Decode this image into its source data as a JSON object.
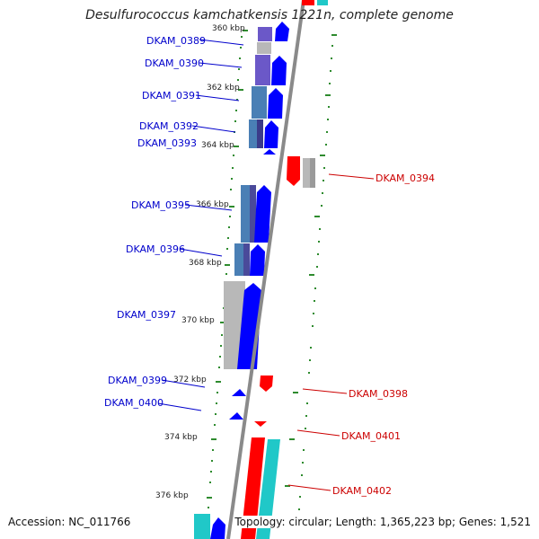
{
  "title": "Desulfurococcus kamchatkensis 1221n, complete genome",
  "accession_text": "Accession: NC_011766",
  "topology_text": "Topology: circular; Length: 1,365,223 bp; Genes: 1,521",
  "colors": {
    "forward_gene": "#0000ff",
    "reverse_gene": "#ff0000",
    "forward_label": "#0000cc",
    "reverse_label": "#cc0000",
    "backbone": "#8a8a8a",
    "tick": "#2e8b2e",
    "cog_steel": "#4a7fb5",
    "cog_purple": "#6b58c8",
    "cog_gray": "#b8b8b8",
    "cog_cyan": "#20c8c8"
  },
  "ticks": [
    {
      "label": "360 kbp"
    },
    {
      "label": "362 kbp"
    },
    {
      "label": "364 kbp"
    },
    {
      "label": "366 kbp"
    },
    {
      "label": "368 kbp"
    },
    {
      "label": "370 kbp"
    },
    {
      "label": "372 kbp"
    },
    {
      "label": "374 kbp"
    },
    {
      "label": "376 kbp"
    }
  ],
  "forward_genes": [
    {
      "locus": "DKAM_0389"
    },
    {
      "locus": "DKAM_0390"
    },
    {
      "locus": "DKAM_0391"
    },
    {
      "locus": "DKAM_0392"
    },
    {
      "locus": "DKAM_0393"
    },
    {
      "locus": "DKAM_0395"
    },
    {
      "locus": "DKAM_0396"
    },
    {
      "locus": "DKAM_0397"
    },
    {
      "locus": "DKAM_0399"
    },
    {
      "locus": "DKAM_0400"
    }
  ],
  "reverse_genes": [
    {
      "locus": "DKAM_0394"
    },
    {
      "locus": "DKAM_0398"
    },
    {
      "locus": "DKAM_0401"
    },
    {
      "locus": "DKAM_0402"
    }
  ]
}
